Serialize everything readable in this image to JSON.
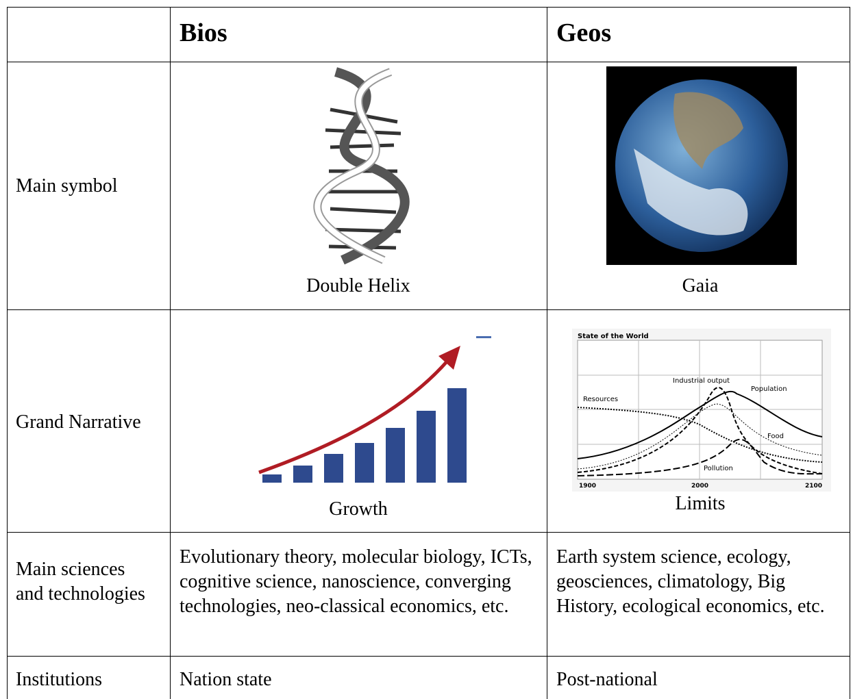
{
  "table": {
    "header": [
      "Bios",
      "Geos"
    ],
    "rows": [
      {
        "label": "Main symbol",
        "bios": {
          "caption": "Double Helix"
        },
        "geos": {
          "caption": "Gaia"
        }
      },
      {
        "label": "Grand Narrative",
        "bios": {
          "caption": "Growth"
        },
        "geos": {
          "caption": "Limits",
          "chart": {
            "title": "State of the World",
            "curves": [
              "Industrial output",
              "Population",
              "Resources",
              "Food",
              "Pollution"
            ],
            "x_labels": [
              "1900",
              "2000",
              "2100"
            ]
          }
        }
      },
      {
        "label": "Main sciences and technologies",
        "bios": "Evolutionary theory, molecular biology, ICTs, cognitive science, nanoscience, converging technologies, neo-classical economics, etc.",
        "geos": "Earth system science, ecology, geosciences, climatology, Big History, ecological economics, etc."
      },
      {
        "label": "Institutions",
        "bios": "Nation state",
        "geos": "Post-national"
      }
    ]
  }
}
